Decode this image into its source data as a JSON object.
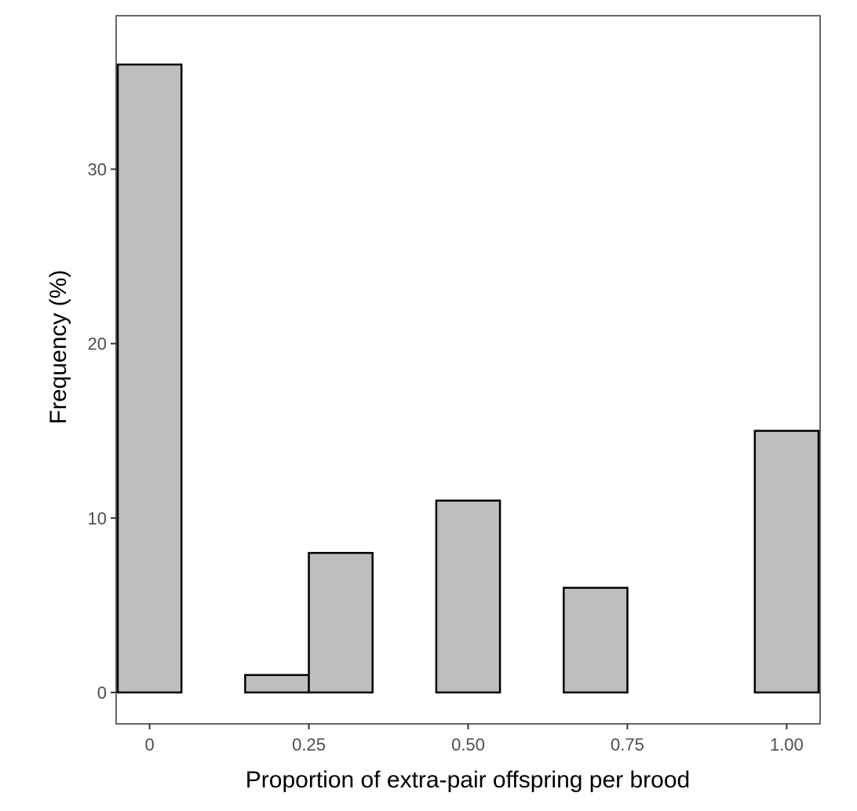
{
  "chart_data": {
    "type": "bar",
    "xlabel": "Proportion of extra-pair offspring per brood",
    "ylabel": "Frequency (%)",
    "xlim": [
      -0.0525,
      1.0525
    ],
    "ylim": [
      -1.8,
      38.8
    ],
    "grid": false,
    "bin_width": 0.1,
    "bins": [
      {
        "x": 0.0,
        "value": 36
      },
      {
        "x": 0.1,
        "value": 0
      },
      {
        "x": 0.2,
        "value": 1
      },
      {
        "x": 0.3,
        "value": 8
      },
      {
        "x": 0.4,
        "value": 0
      },
      {
        "x": 0.5,
        "value": 11
      },
      {
        "x": 0.6,
        "value": 0
      },
      {
        "x": 0.7,
        "value": 6
      },
      {
        "x": 0.8,
        "value": 0
      },
      {
        "x": 0.9,
        "value": 0
      },
      {
        "x": 1.0,
        "value": 15
      }
    ],
    "x_ticks": [
      {
        "value": 0,
        "label": "0"
      },
      {
        "value": 0.25,
        "label": "0.25"
      },
      {
        "value": 0.5,
        "label": "0.50"
      },
      {
        "value": 0.75,
        "label": "0.75"
      },
      {
        "value": 1.0,
        "label": "1.00"
      }
    ],
    "y_ticks": [
      {
        "value": 0,
        "label": "0"
      },
      {
        "value": 10,
        "label": "10"
      },
      {
        "value": 20,
        "label": "20"
      },
      {
        "value": 30,
        "label": "30"
      }
    ],
    "colors": {
      "bar_fill": "#bebebe",
      "bar_stroke": "#000000"
    }
  }
}
